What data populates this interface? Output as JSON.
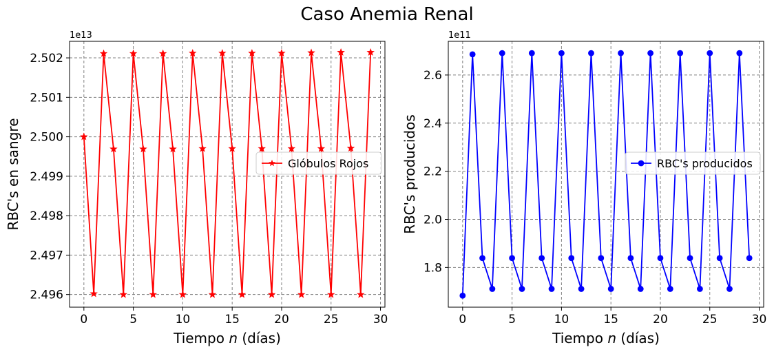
{
  "figure": {
    "suptitle": "Caso Anemia Renal"
  },
  "chart_data": [
    {
      "type": "line",
      "xlabel_prefix": "Tiempo ",
      "xlabel_var": "n",
      "xlabel_suffix": " (días)",
      "ylabel": "RBC's en sangre",
      "offset_label": "1e13",
      "y_scale": 10000000000000.0,
      "xlim": [
        -1.45,
        30.45
      ],
      "ylim": [
        24956800000000.0,
        25024200000000.0
      ],
      "xticks": [
        0,
        5,
        10,
        15,
        20,
        25,
        30
      ],
      "xtick_labels": [
        "0",
        "5",
        "10",
        "15",
        "20",
        "25",
        "30"
      ],
      "yticks": [
        24960000000000.0,
        24970000000000.0,
        24980000000000.0,
        24990000000000.0,
        25000000000000.0,
        25010000000000.0,
        25020000000000.0
      ],
      "ytick_labels": [
        "2.496",
        "2.497",
        "2.498",
        "2.499",
        "2.500",
        "2.501",
        "2.502"
      ],
      "grid": true,
      "legend_position": "right",
      "series": [
        {
          "name": "Glóbulos Rojos",
          "color": "#ff0000",
          "marker": "star",
          "x": [
            0,
            1,
            2,
            3,
            4,
            5,
            6,
            7,
            8,
            9,
            10,
            11,
            12,
            13,
            14,
            15,
            16,
            17,
            18,
            19,
            20,
            21,
            22,
            23,
            24,
            25,
            26,
            27,
            28,
            29
          ],
          "y": [
            25000000000000.0,
            24960200000000.0,
            25021100000000.0,
            24996900000000.0,
            24960000000000.0,
            25021100000000.0,
            24996900000000.0,
            24960000000000.0,
            25021100000000.0,
            24996900000000.0,
            24960000000000.0,
            25021200000000.0,
            24997000000000.0,
            24960000000000.0,
            25021200000000.0,
            24997000000000.0,
            24960000000000.0,
            25021200000000.0,
            24997000000000.0,
            24960000000000.0,
            25021200000000.0,
            24997000000000.0,
            24960000000000.0,
            25021300000000.0,
            24997000000000.0,
            24960000000000.0,
            25021400000000.0,
            24997100000000.0,
            24960000000000.0,
            25021400000000.0
          ]
        }
      ]
    },
    {
      "type": "line",
      "xlabel_prefix": "Tiempo ",
      "xlabel_var": "n",
      "xlabel_suffix": " (días)",
      "ylabel": "RBC's producidos",
      "offset_label": "1e11",
      "y_scale": 100000000000.0,
      "xlim": [
        -1.45,
        30.45
      ],
      "ylim": [
        163500000000.0,
        274000000000.0
      ],
      "xticks": [
        0,
        5,
        10,
        15,
        20,
        25,
        30
      ],
      "xtick_labels": [
        "0",
        "5",
        "10",
        "15",
        "20",
        "25",
        "30"
      ],
      "yticks": [
        180000000000.0,
        200000000000.0,
        220000000000.0,
        240000000000.0,
        260000000000.0
      ],
      "ytick_labels": [
        "1.8",
        "2.0",
        "2.2",
        "2.4",
        "2.6"
      ],
      "grid": true,
      "legend_position": "right",
      "series": [
        {
          "name": "RBC's producidos",
          "color": "#0000ff",
          "marker": "circle",
          "x": [
            0,
            1,
            2,
            3,
            4,
            5,
            6,
            7,
            8,
            9,
            10,
            11,
            12,
            13,
            14,
            15,
            16,
            17,
            18,
            19,
            20,
            21,
            22,
            23,
            24,
            25,
            26,
            27,
            28,
            29
          ],
          "y": [
            168300000000.0,
            268600000000.0,
            183900000000.0,
            171100000000.0,
            269100000000.0,
            183900000000.0,
            171100000000.0,
            269100000000.0,
            183900000000.0,
            171100000000.0,
            269100000000.0,
            183900000000.0,
            171100000000.0,
            269100000000.0,
            183900000000.0,
            171100000000.0,
            269100000000.0,
            183900000000.0,
            171100000000.0,
            269100000000.0,
            183900000000.0,
            171100000000.0,
            269100000000.0,
            183900000000.0,
            171100000000.0,
            269100000000.0,
            183900000000.0,
            171100000000.0,
            269100000000.0,
            183900000000.0
          ]
        }
      ]
    }
  ]
}
